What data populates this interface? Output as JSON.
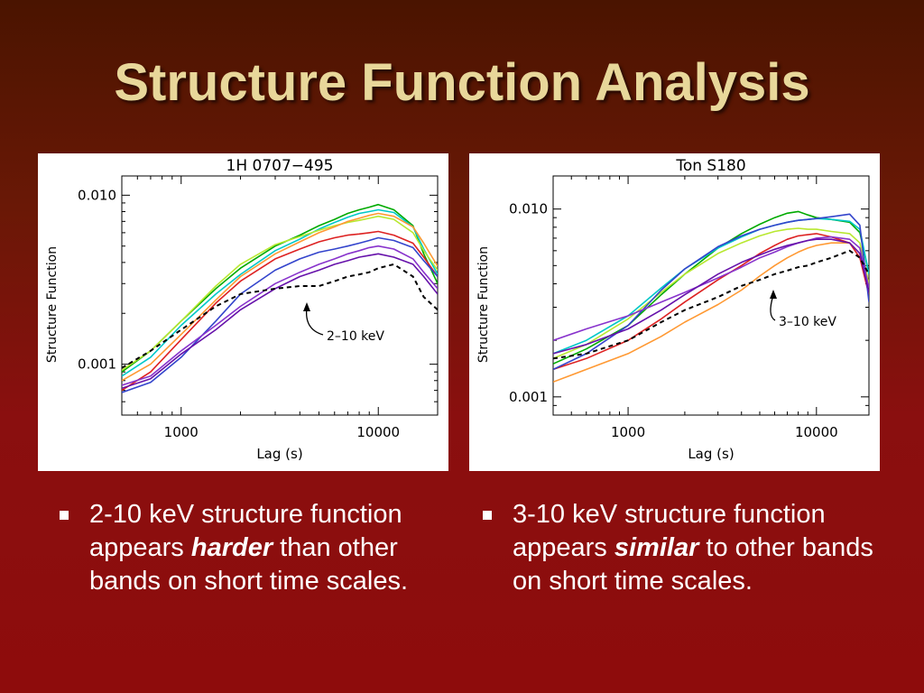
{
  "title": "Structure Function Analysis",
  "bullets": [
    {
      "pre": "2-10 keV structure function appears ",
      "emph": "harder",
      "post": " than other bands on short time scales."
    },
    {
      "pre": "3-10 keV structure function appears ",
      "emph": "similar",
      "post": " to other bands on short time scales."
    }
  ],
  "chart_data": [
    {
      "type": "line",
      "title": "1H 0707−495",
      "xlabel": "Lag (s)",
      "ylabel": "Structure Function",
      "xscale": "log",
      "yscale": "log",
      "xlim": [
        500,
        20000
      ],
      "ylim": [
        0.0005,
        0.013
      ],
      "xticks": [
        1000,
        10000
      ],
      "xtick_labels": [
        "1000",
        "10000"
      ],
      "yticks": [
        0.001,
        0.01
      ],
      "ytick_labels": [
        "0.001",
        "0.010"
      ],
      "annotation": "2–10 keV",
      "x": [
        500,
        700,
        1000,
        1500,
        2000,
        3000,
        4000,
        5000,
        6000,
        7000,
        8000,
        9000,
        10000,
        12000,
        15000,
        17000,
        20000
      ],
      "series": [
        {
          "color": "#000000",
          "dashed": true,
          "values": [
            0.00095,
            0.0012,
            0.0016,
            0.0022,
            0.0026,
            0.0028,
            0.0029,
            0.0029,
            0.0031,
            0.0033,
            0.0034,
            0.0035,
            0.0037,
            0.0039,
            0.0033,
            0.0025,
            0.0021
          ]
        },
        {
          "color": "#00aa00",
          "values": [
            0.0009,
            0.0012,
            0.0018,
            0.0028,
            0.0037,
            0.005,
            0.0058,
            0.0066,
            0.0072,
            0.0078,
            0.0082,
            0.0085,
            0.0088,
            0.0082,
            0.0066,
            0.0045,
            0.003
          ]
        },
        {
          "color": "#00c8c8",
          "values": [
            0.00085,
            0.0011,
            0.0017,
            0.0026,
            0.0034,
            0.0047,
            0.0055,
            0.0063,
            0.0069,
            0.0074,
            0.0078,
            0.008,
            0.0082,
            0.0079,
            0.0065,
            0.0048,
            0.0034
          ]
        },
        {
          "color": "#b8e830",
          "values": [
            0.00092,
            0.0012,
            0.0018,
            0.0029,
            0.0039,
            0.0051,
            0.0057,
            0.0062,
            0.0066,
            0.0069,
            0.0071,
            0.0073,
            0.0075,
            0.0072,
            0.006,
            0.0047,
            0.0036
          ]
        },
        {
          "color": "#ff9933",
          "values": [
            0.0008,
            0.001,
            0.0015,
            0.0024,
            0.0033,
            0.0045,
            0.0053,
            0.006,
            0.0065,
            0.007,
            0.0073,
            0.0076,
            0.0078,
            0.0075,
            0.0065,
            0.0052,
            0.0038
          ]
        },
        {
          "color": "#dd2222",
          "values": [
            0.0007,
            0.0009,
            0.0014,
            0.0023,
            0.0031,
            0.0042,
            0.0048,
            0.0053,
            0.0056,
            0.0058,
            0.0059,
            0.006,
            0.0061,
            0.0058,
            0.0052,
            0.0043,
            0.0033
          ]
        },
        {
          "color": "#3344cc",
          "values": [
            0.00068,
            0.00078,
            0.0011,
            0.0018,
            0.0026,
            0.0036,
            0.0042,
            0.0046,
            0.0048,
            0.005,
            0.0052,
            0.0054,
            0.0056,
            0.0054,
            0.0049,
            0.0041,
            0.0033
          ]
        },
        {
          "color": "#8833cc",
          "values": [
            0.00075,
            0.00085,
            0.0012,
            0.0017,
            0.0022,
            0.003,
            0.0035,
            0.0039,
            0.0042,
            0.0045,
            0.0047,
            0.0049,
            0.005,
            0.0048,
            0.0042,
            0.0035,
            0.0028
          ]
        },
        {
          "color": "#6611aa",
          "values": [
            0.00072,
            0.00082,
            0.00115,
            0.0016,
            0.0021,
            0.0028,
            0.0033,
            0.0036,
            0.0039,
            0.0041,
            0.0043,
            0.0044,
            0.0045,
            0.0043,
            0.0039,
            0.0033,
            0.0026
          ]
        }
      ]
    },
    {
      "type": "line",
      "title": "Ton S180",
      "xlabel": "Lag (s)",
      "ylabel": "Structure Function",
      "xscale": "log",
      "yscale": "log",
      "xlim": [
        400,
        19000
      ],
      "ylim": [
        0.0008,
        0.015
      ],
      "xticks": [
        1000,
        10000
      ],
      "xtick_labels": [
        "1000",
        "10000"
      ],
      "yticks": [
        0.001,
        0.01
      ],
      "ytick_labels": [
        "0.001",
        "0.010"
      ],
      "annotation": "3–10 keV",
      "x": [
        400,
        600,
        1000,
        1500,
        2000,
        3000,
        4000,
        5000,
        6000,
        7000,
        8000,
        9000,
        10000,
        12000,
        15000,
        17000,
        19000
      ],
      "series": [
        {
          "color": "#000000",
          "dashed": true,
          "values": [
            0.0016,
            0.0017,
            0.002,
            0.0025,
            0.0029,
            0.0034,
            0.0039,
            0.0042,
            0.0045,
            0.0047,
            0.0049,
            0.005,
            0.0052,
            0.0055,
            0.006,
            0.0055,
            0.0045
          ]
        },
        {
          "color": "#00aa00",
          "values": [
            0.0015,
            0.0018,
            0.0024,
            0.0035,
            0.0045,
            0.0062,
            0.0074,
            0.0083,
            0.009,
            0.0095,
            0.0097,
            0.0093,
            0.009,
            0.0088,
            0.0085,
            0.0075,
            0.0045
          ]
        },
        {
          "color": "#00c8c8",
          "values": [
            0.0017,
            0.002,
            0.0027,
            0.0038,
            0.0048,
            0.0062,
            0.0071,
            0.0078,
            0.0082,
            0.0085,
            0.0087,
            0.0088,
            0.0089,
            0.0088,
            0.0086,
            0.0078,
            0.0045
          ]
        },
        {
          "color": "#b8e830",
          "values": [
            0.0016,
            0.0019,
            0.0026,
            0.0036,
            0.0045,
            0.0058,
            0.0066,
            0.0072,
            0.0076,
            0.0078,
            0.0079,
            0.0078,
            0.0078,
            0.0076,
            0.0074,
            0.0066,
            0.004
          ]
        },
        {
          "color": "#ff9933",
          "values": [
            0.0012,
            0.0014,
            0.0017,
            0.0021,
            0.0025,
            0.0031,
            0.0037,
            0.0044,
            0.005,
            0.0055,
            0.0059,
            0.0062,
            0.0064,
            0.0066,
            0.0066,
            0.0058,
            0.0038
          ]
        },
        {
          "color": "#dd2222",
          "values": [
            0.0014,
            0.0016,
            0.002,
            0.0026,
            0.0032,
            0.0042,
            0.005,
            0.0058,
            0.0064,
            0.0069,
            0.0072,
            0.0073,
            0.0074,
            0.0071,
            0.0066,
            0.0055,
            0.0035
          ]
        },
        {
          "color": "#3344cc",
          "values": [
            0.0014,
            0.0017,
            0.0024,
            0.0037,
            0.0048,
            0.0063,
            0.0072,
            0.0078,
            0.0082,
            0.0085,
            0.0087,
            0.0088,
            0.0089,
            0.0091,
            0.0094,
            0.0082,
            0.0032
          ]
        },
        {
          "color": "#8833cc",
          "values": [
            0.002,
            0.0023,
            0.0027,
            0.0032,
            0.0036,
            0.0043,
            0.0049,
            0.0055,
            0.0059,
            0.0063,
            0.0066,
            0.0068,
            0.007,
            0.0071,
            0.0069,
            0.0062,
            0.0038
          ]
        },
        {
          "color": "#6611aa",
          "values": [
            0.0017,
            0.0019,
            0.0023,
            0.0029,
            0.0035,
            0.0045,
            0.0052,
            0.0057,
            0.0061,
            0.0064,
            0.0066,
            0.0068,
            0.0069,
            0.0069,
            0.0066,
            0.0058,
            0.0036
          ]
        }
      ]
    }
  ]
}
